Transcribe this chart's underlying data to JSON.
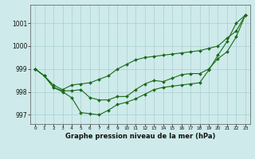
{
  "title": "Graphe pression niveau de la mer (hPa)",
  "background_color": "#ceeaea",
  "grid_color": "#aacfcf",
  "line_color": "#1a6b1a",
  "xlim": [
    -0.5,
    23.5
  ],
  "ylim": [
    996.6,
    1001.8
  ],
  "yticks": [
    997,
    998,
    999,
    1000,
    1001
  ],
  "xticks": [
    0,
    1,
    2,
    3,
    4,
    5,
    6,
    7,
    8,
    9,
    10,
    11,
    12,
    13,
    14,
    15,
    16,
    17,
    18,
    19,
    20,
    21,
    22,
    23
  ],
  "series": [
    [
      999.0,
      998.7,
      998.2,
      998.0,
      997.75,
      997.1,
      997.05,
      997.0,
      997.2,
      997.45,
      997.55,
      997.7,
      997.9,
      998.1,
      998.2,
      998.25,
      998.3,
      998.35,
      998.4,
      998.95,
      999.6,
      1000.2,
      1001.0,
      1001.35
    ],
    [
      999.0,
      998.7,
      998.2,
      998.05,
      998.05,
      998.1,
      997.75,
      997.65,
      997.65,
      997.8,
      997.8,
      998.1,
      998.35,
      998.5,
      998.45,
      998.6,
      998.75,
      998.8,
      998.8,
      999.0,
      999.45,
      999.75,
      1000.4,
      1001.35
    ],
    [
      999.0,
      998.7,
      998.3,
      998.1,
      998.3,
      998.35,
      998.4,
      998.55,
      998.7,
      999.0,
      999.2,
      999.4,
      999.5,
      999.55,
      999.6,
      999.65,
      999.7,
      999.75,
      999.8,
      999.9,
      1000.0,
      1000.35,
      1000.65,
      1001.35
    ]
  ]
}
